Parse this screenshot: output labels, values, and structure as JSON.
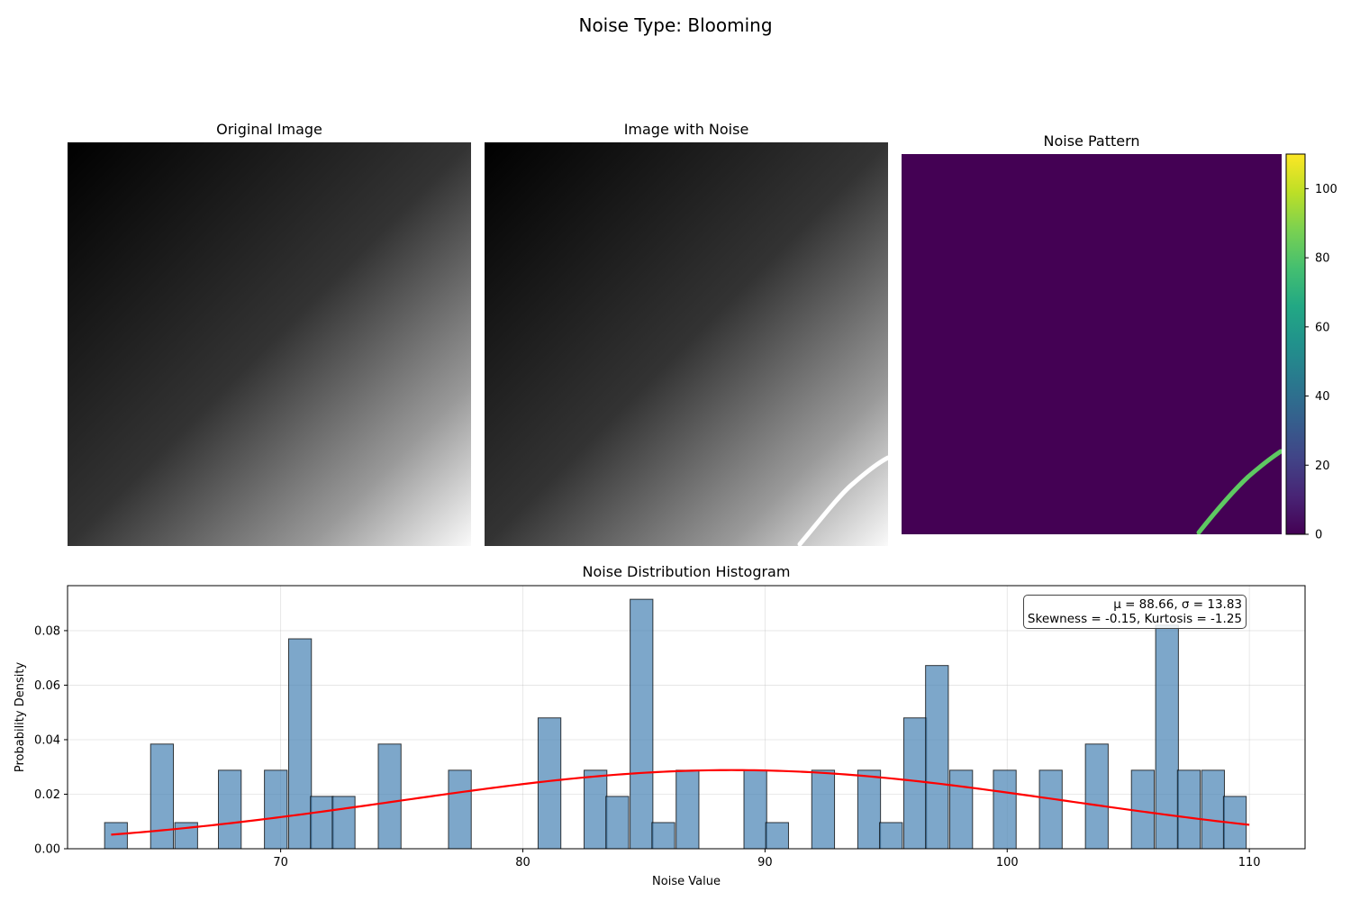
{
  "figure": {
    "suptitle": "Noise Type: Blooming"
  },
  "panels": {
    "original": {
      "title": "Original Image"
    },
    "noisy": {
      "title": "Image with Noise"
    },
    "pattern": {
      "title": "Noise Pattern",
      "colorbar": {
        "ticks": [
          0,
          20,
          40,
          60,
          80,
          100
        ],
        "range": [
          0,
          110
        ]
      }
    }
  },
  "chart_data": {
    "type": "bar",
    "title": "Noise Distribution Histogram",
    "xlabel": "Noise Value",
    "ylabel": "Probability Density",
    "xlim": [
      61.2,
      112.3
    ],
    "ylim": [
      0,
      0.0965
    ],
    "xticks": [
      70,
      80,
      90,
      100,
      110
    ],
    "yticks": [
      0.0,
      0.02,
      0.04,
      0.06,
      0.08
    ],
    "grid": true,
    "bin_width": 0.94,
    "bars": [
      {
        "x": 63.2,
        "y": 0.0096
      },
      {
        "x": 65.1,
        "y": 0.0384
      },
      {
        "x": 66.1,
        "y": 0.0096
      },
      {
        "x": 67.9,
        "y": 0.0288
      },
      {
        "x": 69.8,
        "y": 0.0288
      },
      {
        "x": 70.8,
        "y": 0.077
      },
      {
        "x": 71.7,
        "y": 0.0192
      },
      {
        "x": 72.6,
        "y": 0.0192
      },
      {
        "x": 74.5,
        "y": 0.0384
      },
      {
        "x": 77.4,
        "y": 0.0288
      },
      {
        "x": 81.1,
        "y": 0.048
      },
      {
        "x": 83.0,
        "y": 0.0288
      },
      {
        "x": 83.9,
        "y": 0.0192
      },
      {
        "x": 84.9,
        "y": 0.0915
      },
      {
        "x": 85.8,
        "y": 0.0096
      },
      {
        "x": 86.8,
        "y": 0.0288
      },
      {
        "x": 89.6,
        "y": 0.0288
      },
      {
        "x": 90.5,
        "y": 0.0096
      },
      {
        "x": 92.4,
        "y": 0.0288
      },
      {
        "x": 94.3,
        "y": 0.0288
      },
      {
        "x": 95.2,
        "y": 0.0096
      },
      {
        "x": 96.2,
        "y": 0.048
      },
      {
        "x": 97.1,
        "y": 0.0672
      },
      {
        "x": 98.1,
        "y": 0.0288
      },
      {
        "x": 99.9,
        "y": 0.0288
      },
      {
        "x": 101.8,
        "y": 0.0288
      },
      {
        "x": 103.7,
        "y": 0.0384
      },
      {
        "x": 105.6,
        "y": 0.0288
      },
      {
        "x": 106.6,
        "y": 0.082
      },
      {
        "x": 107.5,
        "y": 0.0288
      },
      {
        "x": 108.5,
        "y": 0.0288
      },
      {
        "x": 109.4,
        "y": 0.0192
      }
    ],
    "fit_curve": {
      "type": "normal",
      "mu": 88.66,
      "sigma": 13.83,
      "x_range": [
        63.0,
        110.0
      ],
      "color": "#ff0000"
    },
    "bar_color": "#4682b4",
    "annotation": {
      "line1": "μ = 88.66, σ = 13.83",
      "line2": "Skewness = -0.15, Kurtosis = -1.25"
    }
  }
}
